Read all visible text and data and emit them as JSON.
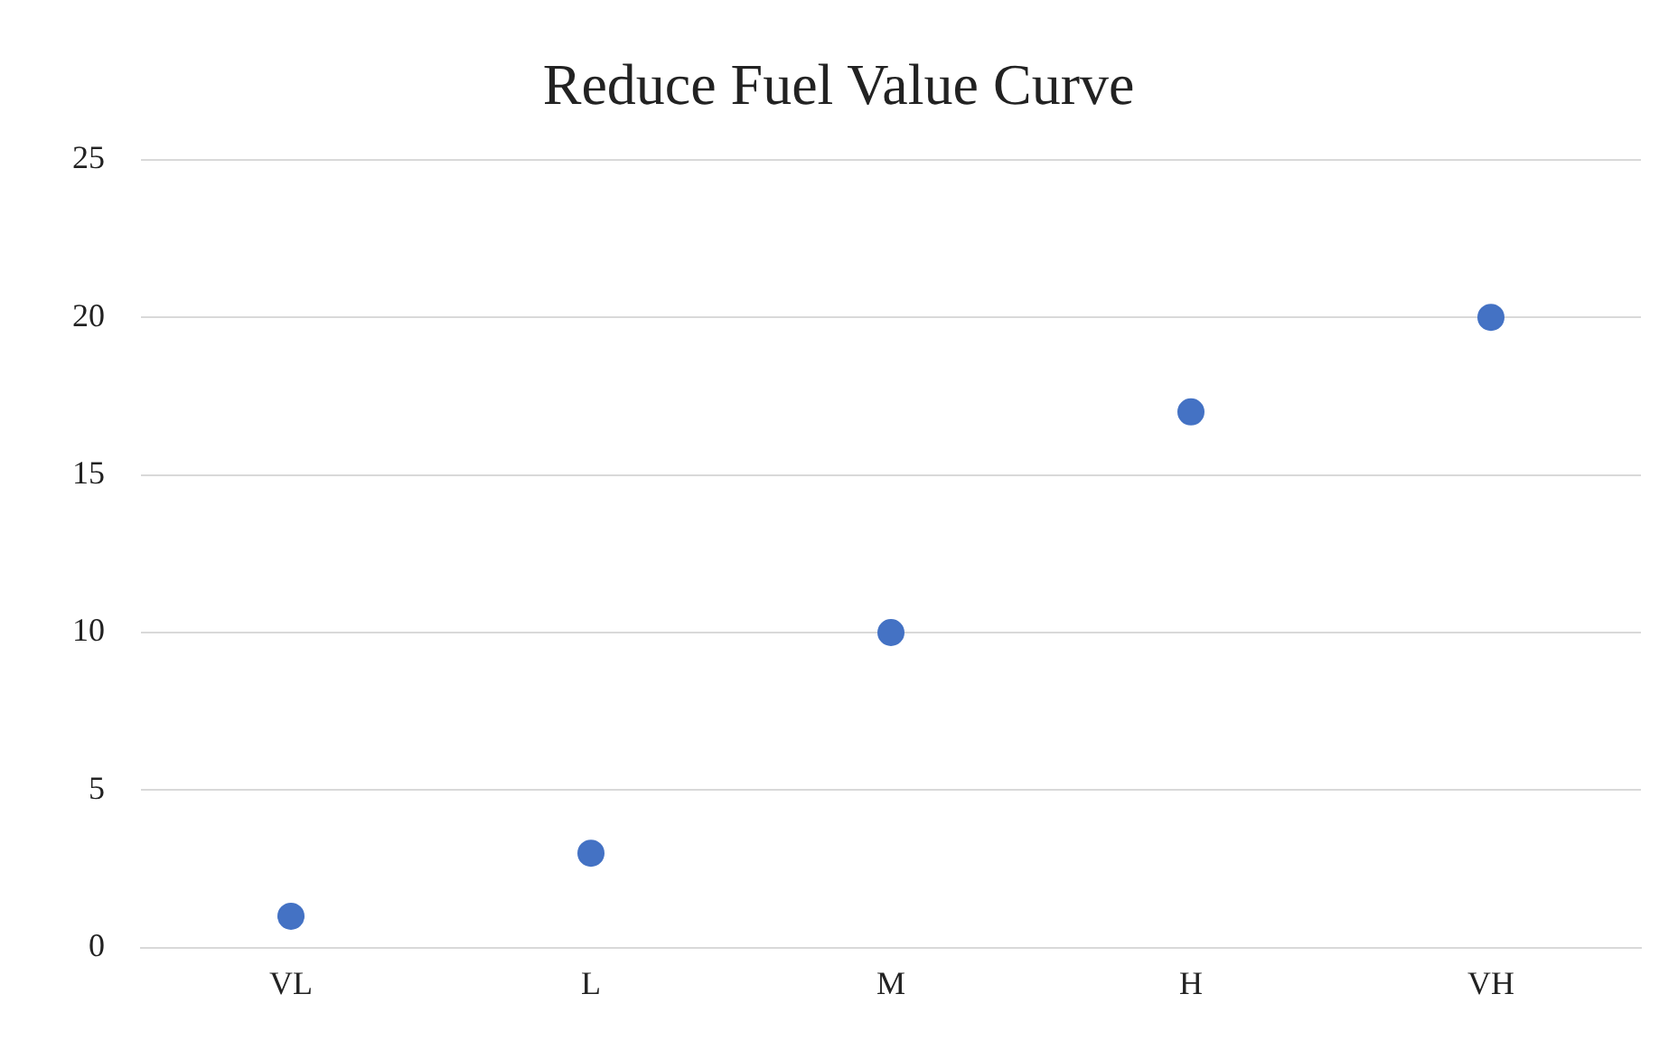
{
  "chart_data": {
    "type": "scatter",
    "title": "Reduce Fuel Value Curve",
    "categories": [
      "VL",
      "L",
      "M",
      "H",
      "VH"
    ],
    "values": [
      1,
      3,
      10,
      17,
      20
    ],
    "color": "#4472c4",
    "ylim": [
      0,
      25
    ],
    "yticks": [
      0,
      5,
      10,
      15,
      20,
      25
    ],
    "grid": "y",
    "marker": "circle",
    "legend": false
  }
}
